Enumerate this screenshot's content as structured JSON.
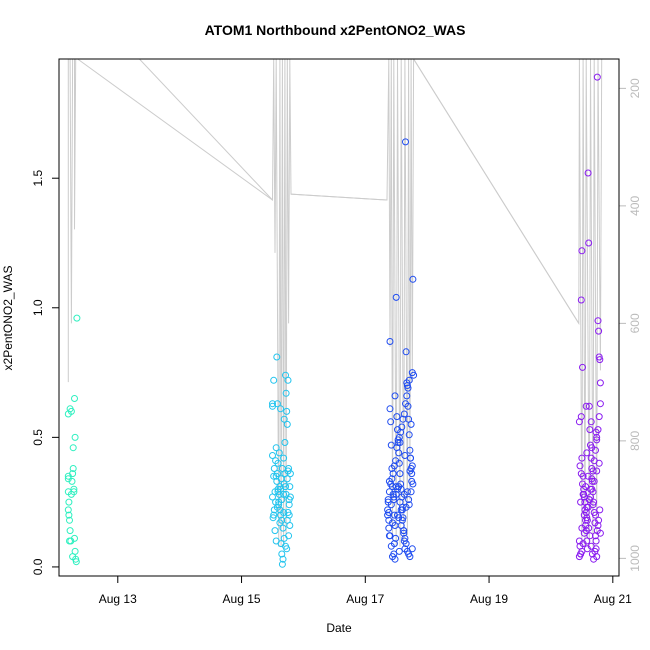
{
  "chart_data": {
    "type": "scatter",
    "title": "ATOM1 Northbound x2PentONO2_WAS",
    "xlabel": "Date",
    "ylabel": "x2PentONO2_WAS",
    "x_unit": "day of August 2016",
    "xlim": [
      12.05,
      21.1
    ],
    "ylim": [
      -0.035,
      1.96
    ],
    "x_ticks": [
      13,
      15,
      17,
      19,
      21
    ],
    "x_tick_labels": [
      "Aug 13",
      "Aug 15",
      "Aug 17",
      "Aug 19",
      "Aug 21"
    ],
    "y_ticks": [
      0.0,
      0.5,
      1.0,
      1.5
    ],
    "y_tick_labels": [
      "0.0",
      "0.5",
      "1.0",
      "1.5"
    ],
    "y2_ticks": [
      200,
      400,
      600,
      800,
      1000
    ],
    "y2_tick_labels": [
      "200",
      "400",
      "600",
      "800",
      "1000"
    ],
    "y2lim": [
      1030,
      150
    ],
    "grid": false,
    "legend": "none",
    "colors": {
      "pressure_line": "#cccccc",
      "flight1": "#2ef0c0",
      "flight2": "#22c4ee",
      "flight3": "#1f4cf0",
      "flight4": "#8a1cf0"
    },
    "pressure_trace": [
      [
        12.2,
        700
      ],
      [
        12.2,
        150
      ],
      [
        12.23,
        150
      ],
      [
        12.25,
        600
      ],
      [
        12.27,
        150
      ],
      [
        12.3,
        150
      ],
      [
        12.3,
        440
      ],
      [
        12.32,
        150
      ],
      [
        12.35,
        150
      ],
      [
        15.5,
        390
      ],
      [
        15.52,
        150
      ],
      [
        15.54,
        480
      ],
      [
        15.56,
        150
      ],
      [
        15.6,
        980
      ],
      [
        15.62,
        150
      ],
      [
        15.64,
        980
      ],
      [
        15.66,
        150
      ],
      [
        15.68,
        980
      ],
      [
        15.7,
        150
      ],
      [
        15.72,
        960
      ],
      [
        15.74,
        150
      ],
      [
        15.76,
        600
      ],
      [
        15.78,
        150
      ],
      [
        15.8,
        380
      ],
      [
        17.35,
        390
      ],
      [
        17.38,
        150
      ],
      [
        17.4,
        640
      ],
      [
        17.42,
        150
      ],
      [
        17.44,
        960
      ],
      [
        17.46,
        150
      ],
      [
        17.5,
        980
      ],
      [
        17.52,
        150
      ],
      [
        17.56,
        980
      ],
      [
        17.58,
        150
      ],
      [
        17.62,
        980
      ],
      [
        17.64,
        150
      ],
      [
        17.68,
        960
      ],
      [
        17.7,
        150
      ],
      [
        17.72,
        900
      ],
      [
        17.74,
        150
      ],
      [
        17.76,
        700
      ],
      [
        17.78,
        150
      ],
      [
        20.45,
        600
      ],
      [
        20.46,
        150
      ],
      [
        20.5,
        980
      ],
      [
        20.52,
        150
      ],
      [
        20.55,
        980
      ],
      [
        20.57,
        150
      ],
      [
        20.62,
        980
      ],
      [
        20.64,
        150
      ],
      [
        20.68,
        980
      ],
      [
        20.7,
        150
      ],
      [
        20.74,
        960
      ],
      [
        20.76,
        150
      ],
      [
        20.8,
        680
      ],
      [
        20.82,
        150
      ]
    ],
    "pressure_connectors": [
      [
        [
          12.35,
          150
        ],
        [
          13.35,
          150
        ],
        [
          15.5,
          390
        ]
      ],
      [
        [
          15.8,
          380
        ],
        [
          17.35,
          390
        ]
      ],
      [
        [
          17.78,
          150
        ],
        [
          20.45,
          600
        ]
      ]
    ],
    "series": [
      {
        "color": "#2ef0c0",
        "x": [
          12.2,
          12.2,
          12.2,
          12.2,
          12.21,
          12.22,
          12.23,
          12.24,
          12.25,
          12.26,
          12.27,
          12.28,
          12.29,
          12.3,
          12.31,
          12.32,
          12.33,
          12.34,
          12.21,
          12.2,
          12.23,
          12.25,
          12.28,
          12.31,
          12.3,
          12.22,
          12.27,
          12.29
        ],
        "y": [
          0.59,
          0.35,
          0.34,
          0.22,
          0.2,
          0.18,
          0.14,
          0.1,
          0.28,
          0.33,
          0.36,
          0.38,
          0.3,
          0.11,
          0.06,
          0.03,
          0.02,
          0.96,
          0.25,
          0.29,
          0.61,
          0.6,
          0.46,
          0.5,
          0.65,
          0.1,
          0.04,
          0.29
        ]
      },
      {
        "color": "#22c4ee",
        "x": [
          15.5,
          15.5,
          15.52,
          15.52,
          15.54,
          15.55,
          15.56,
          15.57,
          15.58,
          15.59,
          15.6,
          15.61,
          15.62,
          15.63,
          15.64,
          15.65,
          15.66,
          15.67,
          15.68,
          15.69,
          15.7,
          15.71,
          15.72,
          15.73,
          15.74,
          15.75,
          15.76,
          15.77,
          15.78,
          15.79,
          15.5,
          15.52,
          15.54,
          15.56,
          15.58,
          15.6,
          15.62,
          15.64,
          15.66,
          15.68,
          15.7,
          15.72,
          15.74,
          15.76,
          15.78,
          15.51,
          15.53,
          15.55,
          15.57,
          15.59,
          15.61,
          15.63,
          15.65,
          15.67,
          15.69,
          15.71,
          15.73,
          15.75,
          15.77,
          15.79,
          15.5,
          15.53,
          15.56,
          15.59,
          15.62,
          15.65,
          15.68,
          15.71,
          15.74,
          15.77,
          15.58,
          15.63,
          15.69,
          15.75
        ],
        "y": [
          0.63,
          0.62,
          0.72,
          0.35,
          0.29,
          0.41,
          0.46,
          0.81,
          0.36,
          0.3,
          0.24,
          0.28,
          0.17,
          0.2,
          0.09,
          0.05,
          0.01,
          0.03,
          0.28,
          0.32,
          0.36,
          0.74,
          0.67,
          0.6,
          0.55,
          0.37,
          0.38,
          0.2,
          0.31,
          0.27,
          0.27,
          0.2,
          0.14,
          0.1,
          0.23,
          0.25,
          0.31,
          0.34,
          0.38,
          0.42,
          0.48,
          0.28,
          0.18,
          0.12,
          0.16,
          0.19,
          0.22,
          0.25,
          0.33,
          0.4,
          0.44,
          0.3,
          0.26,
          0.15,
          0.11,
          0.08,
          0.07,
          0.21,
          0.24,
          0.36,
          0.43,
          0.38,
          0.35,
          0.29,
          0.22,
          0.18,
          0.21,
          0.31,
          0.34,
          0.26,
          0.63,
          0.61,
          0.57,
          0.72
        ]
      },
      {
        "color": "#1f4cf0",
        "x": [
          17.36,
          17.37,
          17.38,
          17.39,
          17.4,
          17.41,
          17.42,
          17.43,
          17.44,
          17.45,
          17.46,
          17.47,
          17.48,
          17.49,
          17.5,
          17.51,
          17.52,
          17.53,
          17.54,
          17.55,
          17.56,
          17.57,
          17.58,
          17.59,
          17.6,
          17.61,
          17.62,
          17.63,
          17.64,
          17.65,
          17.66,
          17.67,
          17.68,
          17.69,
          17.7,
          17.71,
          17.72,
          17.73,
          17.74,
          17.75,
          17.76,
          17.77,
          17.78,
          17.36,
          17.38,
          17.4,
          17.42,
          17.44,
          17.46,
          17.48,
          17.5,
          17.52,
          17.54,
          17.56,
          17.58,
          17.6,
          17.62,
          17.64,
          17.66,
          17.68,
          17.7,
          17.72,
          17.74,
          17.76,
          17.37,
          17.39,
          17.41,
          17.43,
          17.45,
          17.47,
          17.49,
          17.51,
          17.53,
          17.55,
          17.57,
          17.59,
          17.61,
          17.63,
          17.65,
          17.67,
          17.69,
          17.71,
          17.73,
          17.75,
          17.77,
          17.38,
          17.42,
          17.46,
          17.5,
          17.54,
          17.58,
          17.62,
          17.66,
          17.7,
          17.74,
          17.4,
          17.48,
          17.56,
          17.64,
          17.72,
          17.44,
          17.52,
          17.6,
          17.68,
          17.76,
          17.39,
          17.47,
          17.55,
          17.63,
          17.71
        ],
        "y": [
          0.22,
          0.25,
          0.18,
          0.33,
          0.87,
          0.56,
          0.47,
          0.38,
          0.31,
          0.28,
          0.26,
          0.2,
          0.16,
          0.11,
          1.04,
          0.58,
          0.53,
          0.49,
          0.44,
          0.4,
          0.36,
          0.32,
          0.3,
          0.27,
          0.23,
          0.19,
          0.14,
          0.1,
          0.07,
          1.64,
          0.83,
          0.71,
          0.7,
          0.62,
          0.57,
          0.51,
          0.45,
          0.42,
          0.38,
          0.33,
          0.75,
          1.11,
          0.74,
          0.2,
          0.15,
          0.12,
          0.08,
          0.04,
          0.05,
          0.03,
          0.28,
          0.3,
          0.31,
          0.25,
          0.22,
          0.18,
          0.14,
          0.11,
          0.09,
          0.06,
          0.05,
          0.04,
          0.55,
          0.39,
          0.26,
          0.29,
          0.32,
          0.34,
          0.36,
          0.39,
          0.41,
          0.46,
          0.48,
          0.5,
          0.52,
          0.54,
          0.57,
          0.59,
          0.63,
          0.66,
          0.69,
          0.72,
          0.42,
          0.36,
          0.32,
          0.21,
          0.24,
          0.27,
          0.31,
          0.19,
          0.16,
          0.13,
          0.23,
          0.26,
          0.29,
          0.61,
          0.66,
          0.48,
          0.43,
          0.37,
          0.17,
          0.2,
          0.22,
          0.29,
          0.07,
          0.12,
          0.09,
          0.06,
          0.28,
          0.24
        ]
      },
      {
        "color": "#8a1cf0",
        "x": [
          20.46,
          20.47,
          20.48,
          20.49,
          20.5,
          20.51,
          20.52,
          20.53,
          20.54,
          20.55,
          20.56,
          20.57,
          20.58,
          20.59,
          20.6,
          20.61,
          20.62,
          20.63,
          20.64,
          20.65,
          20.66,
          20.67,
          20.68,
          20.69,
          20.7,
          20.71,
          20.72,
          20.73,
          20.74,
          20.75,
          20.76,
          20.77,
          20.78,
          20.79,
          20.8,
          20.46,
          20.48,
          20.5,
          20.52,
          20.54,
          20.56,
          20.58,
          20.6,
          20.62,
          20.64,
          20.66,
          20.68,
          20.7,
          20.72,
          20.74,
          20.76,
          20.78,
          20.8,
          20.47,
          20.49,
          20.51,
          20.53,
          20.55,
          20.57,
          20.59,
          20.61,
          20.63,
          20.65,
          20.67,
          20.69,
          20.71,
          20.73,
          20.75,
          20.77,
          20.79,
          20.48,
          20.52,
          20.56,
          20.6,
          20.64,
          20.68,
          20.72,
          20.76,
          20.8,
          20.5,
          20.58,
          20.66,
          20.74,
          20.46,
          20.5,
          20.54,
          20.58,
          20.62,
          20.66,
          20.7,
          20.74,
          20.78,
          20.49,
          20.57,
          20.65,
          20.73
        ],
        "y": [
          0.56,
          0.08,
          0.05,
          1.03,
          1.22,
          0.77,
          0.35,
          0.3,
          0.27,
          0.22,
          0.18,
          0.14,
          0.1,
          0.07,
          1.52,
          1.25,
          0.62,
          0.53,
          0.47,
          0.42,
          0.38,
          0.33,
          0.29,
          0.25,
          0.21,
          0.17,
          0.12,
          0.07,
          0.04,
          1.89,
          0.95,
          0.91,
          0.81,
          0.8,
          0.71,
          0.04,
          0.05,
          0.06,
          0.09,
          0.13,
          0.16,
          0.19,
          0.23,
          0.26,
          0.3,
          0.34,
          0.37,
          0.41,
          0.45,
          0.49,
          0.53,
          0.58,
          0.63,
          0.39,
          0.36,
          0.32,
          0.28,
          0.25,
          0.21,
          0.18,
          0.15,
          0.12,
          0.08,
          0.05,
          0.03,
          0.06,
          0.1,
          0.14,
          0.18,
          0.22,
          0.25,
          0.28,
          0.31,
          0.35,
          0.27,
          0.24,
          0.2,
          0.16,
          0.13,
          0.42,
          0.44,
          0.46,
          0.5,
          0.1,
          0.15,
          0.2,
          0.23,
          0.26,
          0.3,
          0.33,
          0.37,
          0.4,
          0.58,
          0.62,
          0.56,
          0.52
        ]
      }
    ]
  }
}
